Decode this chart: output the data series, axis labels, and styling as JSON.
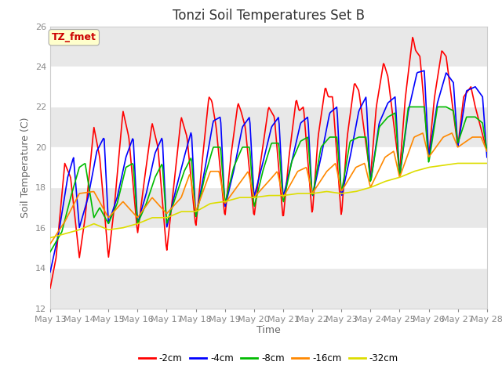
{
  "title": "Tonzi Soil Temperatures Set B",
  "xlabel": "Time",
  "ylabel": "Soil Temperature (C)",
  "ylim": [
    12,
    26
  ],
  "xlim_days": [
    13,
    28
  ],
  "annotation_text": "TZ_fmet",
  "annotation_color": "#cc0000",
  "annotation_bg": "#ffffcc",
  "series": {
    "-2cm": {
      "color": "#ff0000",
      "linewidth": 1.2
    },
    "-4cm": {
      "color": "#0000ff",
      "linewidth": 1.2
    },
    "-8cm": {
      "color": "#00bb00",
      "linewidth": 1.2
    },
    "-16cm": {
      "color": "#ff8800",
      "linewidth": 1.2
    },
    "-32cm": {
      "color": "#dddd00",
      "linewidth": 1.2
    }
  },
  "tick_days": [
    13,
    14,
    15,
    16,
    17,
    18,
    19,
    20,
    21,
    22,
    23,
    24,
    25,
    26,
    27,
    28
  ],
  "yticks": [
    12,
    14,
    16,
    18,
    20,
    22,
    24,
    26
  ],
  "fig_bg": "#ffffff",
  "plot_bg": "#ffffff",
  "band_color": "#e8e8e8",
  "grid_color": "#ffffff",
  "title_fontsize": 12,
  "axis_label_fontsize": 9,
  "tick_fontsize": 8,
  "kp_2cm": [
    [
      13.0,
      13.0
    ],
    [
      13.2,
      14.5
    ],
    [
      13.5,
      19.2
    ],
    [
      13.7,
      18.5
    ],
    [
      14.0,
      14.5
    ],
    [
      14.2,
      16.5
    ],
    [
      14.5,
      21.0
    ],
    [
      14.7,
      19.5
    ],
    [
      15.0,
      14.5
    ],
    [
      15.2,
      17.0
    ],
    [
      15.5,
      21.8
    ],
    [
      15.7,
      20.5
    ],
    [
      16.0,
      15.7
    ],
    [
      16.2,
      18.0
    ],
    [
      16.5,
      21.2
    ],
    [
      16.7,
      20.0
    ],
    [
      17.0,
      14.8
    ],
    [
      17.2,
      17.5
    ],
    [
      17.5,
      21.5
    ],
    [
      17.7,
      20.5
    ],
    [
      18.0,
      16.0
    ],
    [
      18.2,
      19.0
    ],
    [
      18.45,
      22.5
    ],
    [
      18.55,
      22.3
    ],
    [
      18.7,
      21.0
    ],
    [
      19.0,
      16.5
    ],
    [
      19.2,
      19.5
    ],
    [
      19.45,
      22.2
    ],
    [
      19.55,
      21.8
    ],
    [
      19.7,
      21.0
    ],
    [
      20.0,
      16.5
    ],
    [
      20.2,
      19.0
    ],
    [
      20.5,
      22.0
    ],
    [
      20.7,
      21.5
    ],
    [
      21.0,
      16.4
    ],
    [
      21.2,
      19.5
    ],
    [
      21.45,
      22.4
    ],
    [
      21.55,
      21.8
    ],
    [
      21.7,
      22.0
    ],
    [
      22.0,
      16.6
    ],
    [
      22.2,
      20.5
    ],
    [
      22.45,
      23.0
    ],
    [
      22.55,
      22.5
    ],
    [
      22.7,
      22.5
    ],
    [
      23.0,
      16.5
    ],
    [
      23.2,
      20.5
    ],
    [
      23.45,
      23.2
    ],
    [
      23.6,
      22.8
    ],
    [
      24.0,
      18.5
    ],
    [
      24.2,
      22.0
    ],
    [
      24.45,
      24.2
    ],
    [
      24.6,
      23.5
    ],
    [
      25.0,
      18.8
    ],
    [
      25.2,
      22.5
    ],
    [
      25.45,
      25.5
    ],
    [
      25.55,
      24.8
    ],
    [
      25.7,
      24.5
    ],
    [
      26.0,
      19.5
    ],
    [
      26.2,
      22.5
    ],
    [
      26.45,
      24.8
    ],
    [
      26.6,
      24.5
    ],
    [
      27.0,
      20.0
    ],
    [
      27.2,
      22.5
    ],
    [
      27.45,
      23.0
    ],
    [
      27.6,
      22.0
    ],
    [
      28.0,
      19.8
    ]
  ],
  "kp_4cm": [
    [
      13.0,
      13.8
    ],
    [
      13.3,
      15.8
    ],
    [
      13.6,
      18.5
    ],
    [
      13.8,
      19.5
    ],
    [
      14.0,
      16.0
    ],
    [
      14.3,
      17.5
    ],
    [
      14.6,
      19.8
    ],
    [
      14.85,
      20.5
    ],
    [
      15.0,
      16.2
    ],
    [
      15.3,
      17.5
    ],
    [
      15.6,
      19.5
    ],
    [
      15.85,
      20.5
    ],
    [
      16.0,
      16.2
    ],
    [
      16.3,
      17.7
    ],
    [
      16.6,
      19.7
    ],
    [
      16.85,
      20.5
    ],
    [
      17.0,
      16.0
    ],
    [
      17.3,
      17.8
    ],
    [
      17.6,
      19.5
    ],
    [
      17.85,
      20.8
    ],
    [
      18.0,
      16.5
    ],
    [
      18.3,
      18.8
    ],
    [
      18.6,
      21.3
    ],
    [
      18.85,
      21.5
    ],
    [
      19.0,
      17.0
    ],
    [
      19.3,
      18.8
    ],
    [
      19.6,
      21.0
    ],
    [
      19.85,
      21.5
    ],
    [
      20.0,
      17.5
    ],
    [
      20.3,
      19.2
    ],
    [
      20.6,
      21.0
    ],
    [
      20.85,
      21.5
    ],
    [
      21.0,
      17.5
    ],
    [
      21.3,
      19.3
    ],
    [
      21.6,
      21.2
    ],
    [
      21.85,
      21.5
    ],
    [
      22.0,
      17.5
    ],
    [
      22.3,
      19.5
    ],
    [
      22.6,
      21.7
    ],
    [
      22.85,
      22.0
    ],
    [
      23.0,
      17.5
    ],
    [
      23.3,
      19.5
    ],
    [
      23.6,
      21.8
    ],
    [
      23.85,
      22.5
    ],
    [
      24.0,
      18.2
    ],
    [
      24.3,
      21.2
    ],
    [
      24.6,
      22.2
    ],
    [
      24.85,
      22.5
    ],
    [
      25.0,
      18.5
    ],
    [
      25.3,
      21.8
    ],
    [
      25.6,
      23.7
    ],
    [
      25.85,
      23.8
    ],
    [
      26.0,
      19.5
    ],
    [
      26.3,
      22.2
    ],
    [
      26.6,
      23.7
    ],
    [
      26.85,
      23.2
    ],
    [
      27.0,
      20.0
    ],
    [
      27.3,
      22.8
    ],
    [
      27.6,
      23.0
    ],
    [
      27.85,
      22.5
    ],
    [
      28.0,
      19.5
    ]
  ],
  "kp_8cm": [
    [
      13.0,
      14.8
    ],
    [
      13.4,
      15.8
    ],
    [
      13.7,
      17.5
    ],
    [
      14.0,
      19.0
    ],
    [
      14.2,
      19.2
    ],
    [
      14.5,
      16.5
    ],
    [
      14.7,
      17.0
    ],
    [
      15.0,
      16.2
    ],
    [
      15.3,
      17.2
    ],
    [
      15.6,
      19.0
    ],
    [
      15.85,
      19.2
    ],
    [
      16.0,
      16.2
    ],
    [
      16.3,
      17.2
    ],
    [
      16.6,
      18.5
    ],
    [
      16.85,
      19.2
    ],
    [
      17.0,
      16.2
    ],
    [
      17.3,
      17.5
    ],
    [
      17.6,
      18.8
    ],
    [
      17.85,
      19.5
    ],
    [
      18.0,
      16.5
    ],
    [
      18.3,
      18.5
    ],
    [
      18.6,
      20.0
    ],
    [
      18.85,
      20.0
    ],
    [
      19.0,
      17.2
    ],
    [
      19.3,
      19.0
    ],
    [
      19.6,
      20.0
    ],
    [
      19.85,
      20.0
    ],
    [
      20.0,
      17.0
    ],
    [
      20.3,
      18.8
    ],
    [
      20.6,
      20.2
    ],
    [
      20.85,
      20.2
    ],
    [
      21.0,
      17.2
    ],
    [
      21.3,
      19.3
    ],
    [
      21.6,
      20.3
    ],
    [
      21.85,
      20.5
    ],
    [
      22.0,
      17.5
    ],
    [
      22.3,
      20.0
    ],
    [
      22.6,
      20.5
    ],
    [
      22.85,
      20.5
    ],
    [
      23.0,
      17.7
    ],
    [
      23.3,
      20.3
    ],
    [
      23.6,
      20.5
    ],
    [
      23.85,
      20.5
    ],
    [
      24.0,
      18.2
    ],
    [
      24.3,
      21.0
    ],
    [
      24.6,
      21.5
    ],
    [
      24.85,
      21.7
    ],
    [
      25.0,
      18.5
    ],
    [
      25.3,
      22.0
    ],
    [
      25.6,
      22.0
    ],
    [
      25.85,
      22.0
    ],
    [
      26.0,
      19.2
    ],
    [
      26.3,
      22.0
    ],
    [
      26.6,
      22.0
    ],
    [
      26.85,
      21.8
    ],
    [
      27.0,
      20.2
    ],
    [
      27.3,
      21.5
    ],
    [
      27.6,
      21.5
    ],
    [
      27.85,
      21.2
    ],
    [
      28.0,
      19.8
    ]
  ],
  "kp_16cm": [
    [
      13.0,
      15.2
    ],
    [
      13.5,
      16.3
    ],
    [
      14.0,
      17.7
    ],
    [
      14.5,
      17.8
    ],
    [
      15.0,
      16.5
    ],
    [
      15.5,
      17.3
    ],
    [
      16.0,
      16.5
    ],
    [
      16.5,
      17.5
    ],
    [
      17.0,
      16.7
    ],
    [
      17.5,
      17.5
    ],
    [
      17.8,
      18.7
    ],
    [
      18.0,
      16.8
    ],
    [
      18.5,
      18.8
    ],
    [
      18.8,
      18.8
    ],
    [
      19.0,
      17.2
    ],
    [
      19.5,
      18.2
    ],
    [
      19.8,
      18.8
    ],
    [
      20.0,
      17.5
    ],
    [
      20.5,
      18.3
    ],
    [
      20.8,
      18.8
    ],
    [
      21.0,
      17.5
    ],
    [
      21.5,
      18.8
    ],
    [
      21.8,
      19.0
    ],
    [
      22.0,
      17.7
    ],
    [
      22.5,
      18.8
    ],
    [
      22.8,
      19.2
    ],
    [
      23.0,
      17.8
    ],
    [
      23.5,
      19.0
    ],
    [
      23.8,
      19.2
    ],
    [
      24.0,
      18.0
    ],
    [
      24.5,
      19.5
    ],
    [
      24.8,
      19.8
    ],
    [
      25.0,
      18.5
    ],
    [
      25.5,
      20.5
    ],
    [
      25.8,
      20.7
    ],
    [
      26.0,
      19.5
    ],
    [
      26.5,
      20.5
    ],
    [
      26.8,
      20.7
    ],
    [
      27.0,
      20.0
    ],
    [
      27.5,
      20.5
    ],
    [
      27.8,
      20.5
    ],
    [
      28.0,
      19.8
    ]
  ],
  "kp_32cm": [
    [
      13.0,
      15.5
    ],
    [
      13.5,
      15.7
    ],
    [
      14.0,
      15.9
    ],
    [
      14.5,
      16.2
    ],
    [
      15.0,
      15.9
    ],
    [
      15.5,
      16.0
    ],
    [
      16.0,
      16.2
    ],
    [
      16.5,
      16.5
    ],
    [
      17.0,
      16.5
    ],
    [
      17.5,
      16.8
    ],
    [
      18.0,
      16.8
    ],
    [
      18.5,
      17.2
    ],
    [
      19.0,
      17.3
    ],
    [
      19.5,
      17.5
    ],
    [
      20.0,
      17.5
    ],
    [
      20.5,
      17.6
    ],
    [
      21.0,
      17.6
    ],
    [
      21.5,
      17.7
    ],
    [
      22.0,
      17.7
    ],
    [
      22.5,
      17.8
    ],
    [
      23.0,
      17.7
    ],
    [
      23.5,
      17.8
    ],
    [
      24.0,
      18.0
    ],
    [
      24.5,
      18.3
    ],
    [
      25.0,
      18.5
    ],
    [
      25.5,
      18.8
    ],
    [
      26.0,
      19.0
    ],
    [
      26.5,
      19.1
    ],
    [
      27.0,
      19.2
    ],
    [
      27.5,
      19.2
    ],
    [
      28.0,
      19.2
    ]
  ]
}
